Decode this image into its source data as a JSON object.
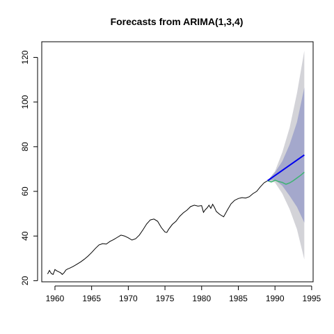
{
  "chart_data": {
    "type": "line",
    "title": "Forecasts from ARIMA(1,3,4)",
    "xlabel": "",
    "ylabel": "",
    "xlim": [
      1958.2,
      1995.2
    ],
    "ylim": [
      19.5,
      127
    ],
    "x_ticks": [
      1960,
      1965,
      1970,
      1975,
      1980,
      1985,
      1990,
      1995
    ],
    "y_ticks": [
      20,
      40,
      60,
      80,
      100,
      120
    ],
    "grid": false,
    "legend": "none",
    "colors": {
      "history": "#000000",
      "forecast": "#0000ee",
      "actual": "#3cb371",
      "band95": "#d3d3d8",
      "band80": "#a4a8cc"
    },
    "series": [
      {
        "role": "history",
        "x": [
          1959.0,
          1959.25,
          1959.5,
          1959.75,
          1960.0,
          1960.25,
          1960.5,
          1960.75,
          1961.0,
          1961.25,
          1961.5,
          1961.75,
          1962.0,
          1962.5,
          1963.0,
          1963.5,
          1964.0,
          1964.5,
          1965.0,
          1965.5,
          1966.0,
          1966.5,
          1967.0,
          1967.5,
          1968.0,
          1968.5,
          1969.0,
          1969.5,
          1970.0,
          1970.5,
          1971.0,
          1971.5,
          1972.0,
          1972.5,
          1973.0,
          1973.5,
          1974.0,
          1974.5,
          1975.0,
          1975.25,
          1975.5,
          1976.0,
          1976.5,
          1977.0,
          1977.5,
          1978.0,
          1978.5,
          1979.0,
          1979.5,
          1980.0,
          1980.25,
          1980.5,
          1980.75,
          1981.0,
          1981.25,
          1981.5,
          1981.75,
          1982.0,
          1982.5,
          1983.0,
          1983.5,
          1984.0,
          1984.5,
          1985.0,
          1985.5,
          1986.0,
          1986.5,
          1987.0,
          1987.5,
          1988.0,
          1988.5,
          1989.0
        ],
        "values": [
          23.0,
          24.6,
          23.2,
          22.8,
          25.0,
          24.4,
          24.0,
          23.6,
          22.8,
          23.6,
          24.8,
          25.3,
          25.6,
          26.4,
          27.4,
          28.4,
          29.6,
          31.0,
          32.6,
          34.4,
          36.0,
          36.6,
          36.4,
          37.6,
          38.4,
          39.4,
          40.4,
          40.0,
          39.2,
          38.2,
          38.8,
          40.4,
          42.8,
          45.4,
          47.2,
          47.6,
          46.6,
          43.8,
          41.8,
          41.6,
          43.0,
          45.2,
          46.6,
          48.8,
          50.4,
          51.6,
          53.2,
          53.8,
          53.4,
          53.6,
          50.6,
          51.8,
          52.6,
          53.8,
          52.4,
          54.2,
          52.8,
          51.0,
          49.6,
          48.6,
          51.6,
          54.4,
          56.0,
          56.8,
          57.2,
          57.0,
          57.6,
          59.0,
          60.0,
          62.0,
          63.8,
          64.8
        ]
      },
      {
        "role": "forecast",
        "x": [
          1989.0,
          1994.0
        ],
        "values": [
          64.8,
          76.3
        ]
      },
      {
        "role": "actual",
        "x": [
          1989.0,
          1989.5,
          1990.0,
          1990.5,
          1991.0,
          1991.5,
          1992.0,
          1992.5,
          1993.0,
          1993.5,
          1994.0
        ],
        "values": [
          64.8,
          64.2,
          65.0,
          64.4,
          64.0,
          63.2,
          63.8,
          64.8,
          66.0,
          67.2,
          68.6
        ]
      },
      {
        "role": "band95",
        "x": [
          1989.0,
          1990.0,
          1991.0,
          1992.0,
          1993.0,
          1994.0
        ],
        "lower": [
          64.8,
          64.0,
          59.0,
          52.0,
          43.0,
          29.5
        ],
        "upper": [
          64.8,
          69.0,
          77.5,
          88.5,
          104.0,
          123.0
        ]
      },
      {
        "role": "band80",
        "x": [
          1989.0,
          1990.0,
          1991.0,
          1992.0,
          1993.0,
          1994.0
        ],
        "lower": [
          64.8,
          65.2,
          62.5,
          58.0,
          53.0,
          46.0
        ],
        "upper": [
          64.8,
          68.5,
          73.5,
          81.0,
          91.0,
          106.5
        ]
      }
    ]
  }
}
